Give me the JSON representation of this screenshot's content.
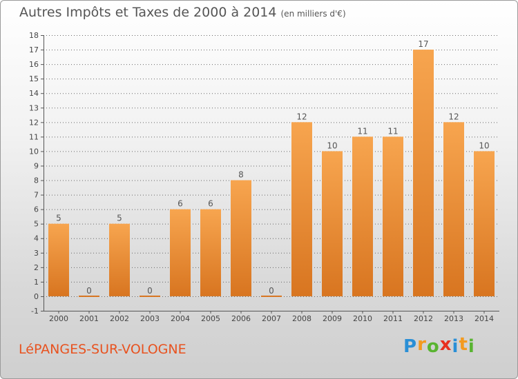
{
  "header": {
    "title": "Autres Impôts et Taxes de 2000 à 2014",
    "subtitle": "(en milliers d'€)"
  },
  "footer": {
    "commune": "LéPANGES-SUR-VOLOGNE",
    "logo": {
      "letters": [
        "P",
        "r",
        "o",
        "x",
        "i",
        "t",
        "i"
      ],
      "colors": [
        "#2a8fd6",
        "#f39a1f",
        "#59b431",
        "#e8301e",
        "#2a8fd6",
        "#f39a1f",
        "#59b431"
      ]
    }
  },
  "colors": {
    "bar_light": "#f7a54f",
    "bar_dark": "#d87520",
    "axis": "#555555",
    "grid": "#666666",
    "title": "#555555",
    "commune": "#e8521f"
  },
  "chart_data": {
    "type": "bar",
    "title": "Autres Impôts et Taxes de 2000 à 2014",
    "subtitle": "(en milliers d'€)",
    "categories": [
      "2000",
      "2001",
      "2002",
      "2003",
      "2004",
      "2005",
      "2006",
      "2007",
      "2008",
      "2009",
      "2010",
      "2011",
      "2012",
      "2013",
      "2014"
    ],
    "values": [
      5,
      0,
      5,
      0,
      6,
      6,
      8,
      0,
      12,
      10,
      11,
      11,
      17,
      12,
      10
    ],
    "data_labels": [
      "5",
      "0",
      "5",
      "0",
      "6",
      "6",
      "8",
      "0",
      "12",
      "10",
      "11",
      "11",
      "17",
      "12",
      "10"
    ],
    "ylim": [
      -1,
      18
    ],
    "yticks": [
      -1,
      0,
      1,
      2,
      3,
      4,
      5,
      6,
      7,
      8,
      9,
      10,
      11,
      12,
      13,
      14,
      15,
      16,
      17,
      18
    ],
    "ytick_labels": [
      "-1",
      "0",
      "1",
      "2",
      "3",
      "4",
      "5",
      "6",
      "7",
      "8",
      "9",
      "10",
      "11",
      "12",
      "13",
      "14",
      "15",
      "16",
      "17",
      "18"
    ],
    "xlabel": "",
    "ylabel": "",
    "grid": true,
    "legend": "none"
  }
}
